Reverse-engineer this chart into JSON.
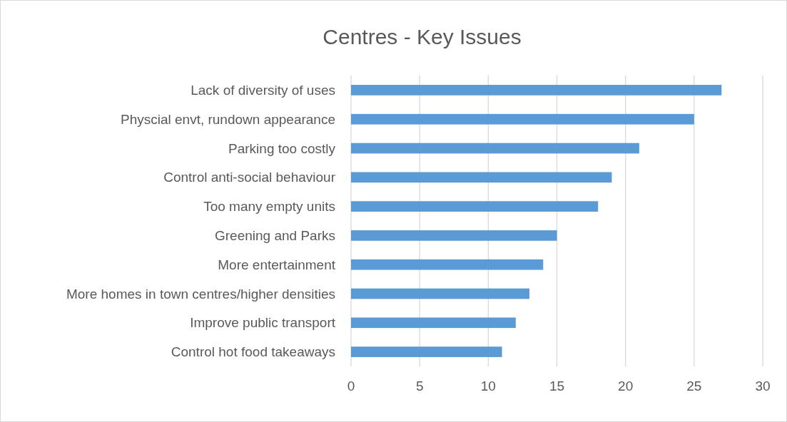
{
  "chart_data": {
    "type": "bar",
    "orientation": "horizontal",
    "title": "Centres - Key Issues",
    "categories": [
      "Lack of diversity of uses",
      "Physcial envt, rundown appearance",
      "Parking too costly",
      "Control anti-social behaviour",
      "Too many empty units",
      "Greening and Parks",
      "More entertainment",
      "More homes in town centres/higher densities",
      "Improve public transport",
      "Control hot food takeaways"
    ],
    "values": [
      27,
      25,
      21,
      19,
      18,
      15,
      14,
      13,
      12,
      11
    ],
    "color": "#5b9bd5",
    "xlim": [
      0,
      30
    ],
    "xticks": [
      0,
      5,
      10,
      15,
      20,
      25,
      30
    ],
    "grid": "x"
  }
}
